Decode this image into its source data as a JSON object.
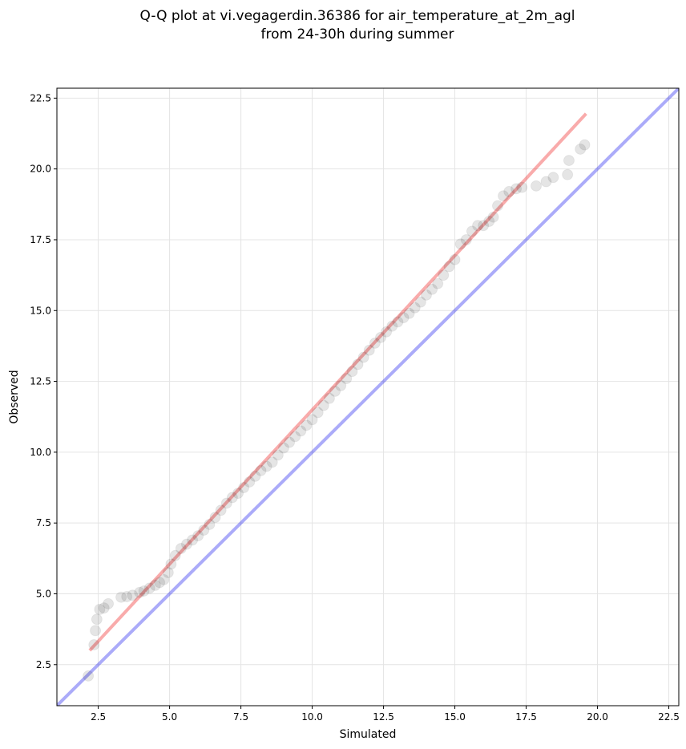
{
  "chart_data": {
    "type": "scatter",
    "title_lines": [
      "Q-Q plot at vi.vegagerdin.36386 for air_temperature_at_2m_agl",
      "from 24-30h during summer"
    ],
    "xlabel": "Simulated",
    "ylabel": "Observed",
    "xlim": [
      1.05,
      22.85
    ],
    "ylim": [
      1.05,
      22.85
    ],
    "ticks": [
      2.5,
      5.0,
      7.5,
      10.0,
      12.5,
      15.0,
      17.5,
      20.0,
      22.5
    ],
    "tick_labels": [
      "2.5",
      "5.0",
      "7.5",
      "10.0",
      "12.5",
      "15.0",
      "17.5",
      "20.0",
      "22.5"
    ],
    "grid": true,
    "identity_line": {
      "from": [
        1.05,
        1.05
      ],
      "to": [
        22.85,
        22.85
      ],
      "color": "#0000ee"
    },
    "fit_line": {
      "from": [
        2.2,
        3.0
      ],
      "to": [
        19.6,
        21.95
      ],
      "color": "#ee2222"
    },
    "point_color": "#000000",
    "points": [
      [
        2.15,
        2.1
      ],
      [
        2.35,
        3.2
      ],
      [
        2.4,
        3.7
      ],
      [
        2.45,
        4.1
      ],
      [
        2.55,
        4.45
      ],
      [
        2.7,
        4.5
      ],
      [
        2.85,
        4.65
      ],
      [
        3.3,
        4.88
      ],
      [
        3.5,
        4.9
      ],
      [
        3.7,
        4.95
      ],
      [
        3.95,
        5.05
      ],
      [
        4.1,
        5.1
      ],
      [
        4.3,
        5.2
      ],
      [
        4.5,
        5.3
      ],
      [
        4.65,
        5.4
      ],
      [
        4.8,
        5.5
      ],
      [
        4.95,
        5.75
      ],
      [
        5.05,
        6.05
      ],
      [
        5.2,
        6.35
      ],
      [
        5.4,
        6.6
      ],
      [
        5.6,
        6.75
      ],
      [
        5.8,
        6.9
      ],
      [
        6.0,
        7.05
      ],
      [
        6.2,
        7.25
      ],
      [
        6.4,
        7.45
      ],
      [
        6.6,
        7.7
      ],
      [
        6.8,
        7.95
      ],
      [
        7.0,
        8.2
      ],
      [
        7.2,
        8.4
      ],
      [
        7.4,
        8.55
      ],
      [
        7.6,
        8.75
      ],
      [
        7.8,
        8.95
      ],
      [
        8.0,
        9.15
      ],
      [
        8.2,
        9.35
      ],
      [
        8.4,
        9.5
      ],
      [
        8.6,
        9.65
      ],
      [
        8.8,
        9.9
      ],
      [
        9.0,
        10.15
      ],
      [
        9.2,
        10.35
      ],
      [
        9.4,
        10.55
      ],
      [
        9.6,
        10.75
      ],
      [
        9.8,
        10.95
      ],
      [
        10.0,
        11.15
      ],
      [
        10.2,
        11.4
      ],
      [
        10.4,
        11.65
      ],
      [
        10.6,
        11.9
      ],
      [
        10.8,
        12.15
      ],
      [
        11.0,
        12.35
      ],
      [
        11.2,
        12.6
      ],
      [
        11.4,
        12.85
      ],
      [
        11.6,
        13.1
      ],
      [
        11.8,
        13.35
      ],
      [
        12.0,
        13.6
      ],
      [
        12.2,
        13.85
      ],
      [
        12.4,
        14.05
      ],
      [
        12.6,
        14.25
      ],
      [
        12.8,
        14.45
      ],
      [
        13.0,
        14.6
      ],
      [
        13.2,
        14.75
      ],
      [
        13.4,
        14.9
      ],
      [
        13.6,
        15.1
      ],
      [
        13.8,
        15.3
      ],
      [
        14.0,
        15.55
      ],
      [
        14.2,
        15.75
      ],
      [
        14.4,
        15.95
      ],
      [
        14.6,
        16.25
      ],
      [
        14.8,
        16.55
      ],
      [
        15.0,
        16.8
      ],
      [
        15.2,
        17.35
      ],
      [
        15.4,
        17.5
      ],
      [
        15.6,
        17.8
      ],
      [
        15.8,
        18.0
      ],
      [
        16.0,
        18.0
      ],
      [
        16.2,
        18.15
      ],
      [
        16.35,
        18.3
      ],
      [
        16.5,
        18.7
      ],
      [
        16.7,
        19.05
      ],
      [
        16.9,
        19.2
      ],
      [
        17.15,
        19.3
      ],
      [
        17.35,
        19.35
      ],
      [
        17.85,
        19.4
      ],
      [
        18.2,
        19.55
      ],
      [
        18.45,
        19.7
      ],
      [
        18.95,
        19.8
      ],
      [
        19.0,
        20.3
      ],
      [
        19.4,
        20.7
      ],
      [
        19.55,
        20.85
      ]
    ]
  }
}
